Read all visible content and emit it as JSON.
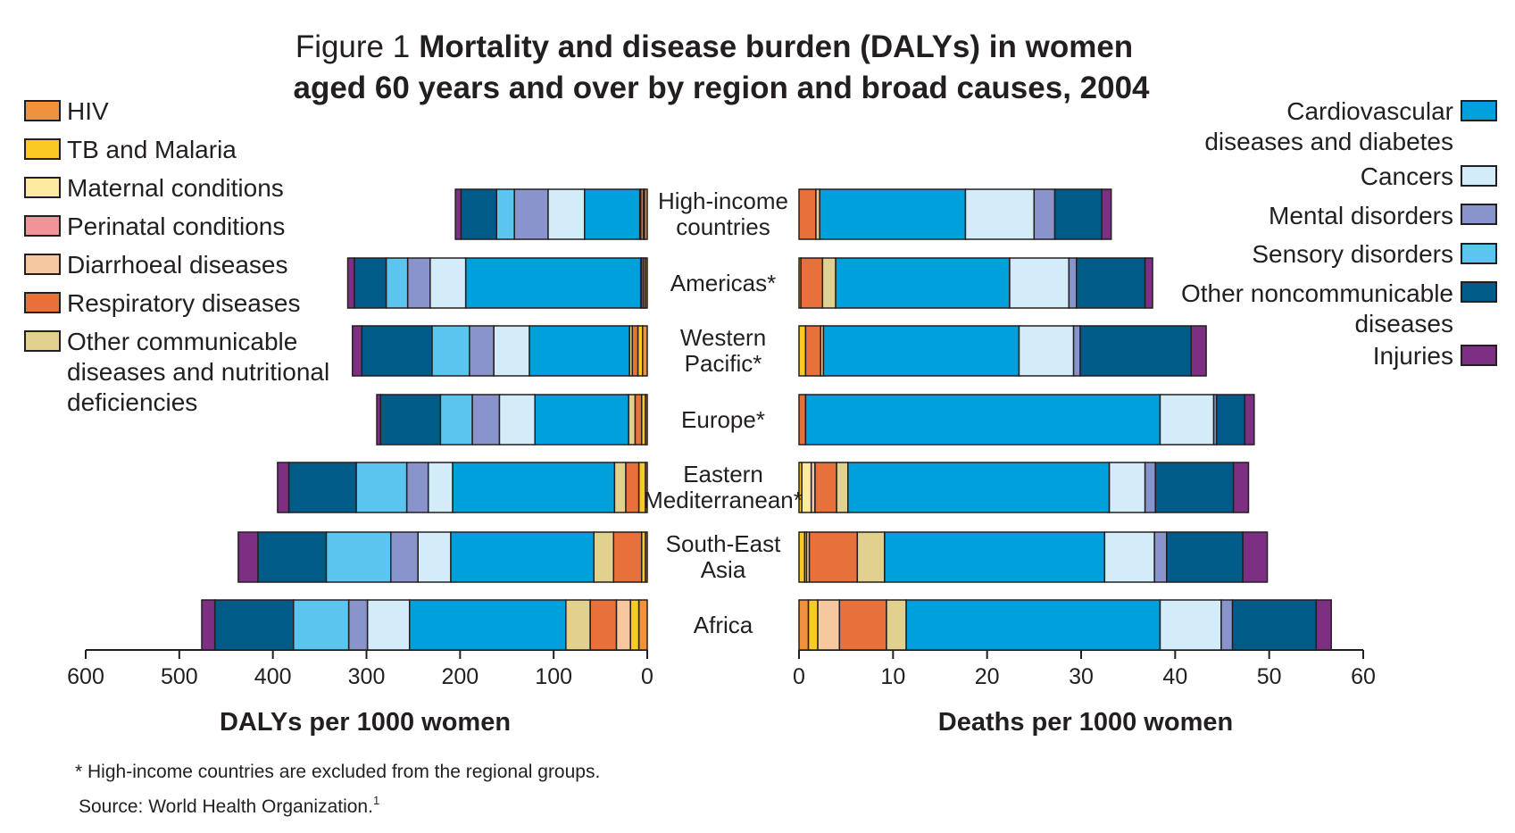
{
  "chart_data": [
    {
      "type": "bar",
      "orientation": "horizontal",
      "stacked": true,
      "direction": "leftward",
      "xlabel": "DALYs per 1000 women",
      "xlim": [
        0,
        600
      ],
      "xticks": [
        600,
        500,
        400,
        300,
        200,
        100,
        0
      ],
      "categories": [
        "High-income countries",
        "Americas*",
        "Western Pacific*",
        "Europe*",
        "Eastern Mediterranean*",
        "South-East Asia",
        "Africa"
      ],
      "series": [
        {
          "name": "HIV",
          "values": [
            3,
            2,
            5,
            2,
            2,
            2,
            9
          ]
        },
        {
          "name": "TB and Malaria",
          "values": [
            1,
            2,
            5,
            4,
            7,
            4,
            9
          ]
        },
        {
          "name": "Maternal conditions",
          "values": [
            0,
            0,
            0,
            0,
            0,
            0,
            0
          ]
        },
        {
          "name": "Perinatal conditions",
          "values": [
            0,
            0,
            0,
            0,
            0,
            0,
            0
          ]
        },
        {
          "name": "Diarrhoeal diseases",
          "values": [
            0,
            0,
            0,
            0,
            0,
            0,
            15
          ]
        },
        {
          "name": "Respiratory diseases",
          "values": [
            3,
            2,
            6,
            7,
            14,
            30,
            28
          ]
        },
        {
          "name": "Other communicable diseases and nutritional deficiencies",
          "values": [
            1,
            1,
            3,
            7,
            12,
            21,
            26
          ]
        },
        {
          "name": "Cardiovascular diseases and diabetes",
          "values": [
            59,
            187,
            107,
            100,
            173,
            153,
            167
          ]
        },
        {
          "name": "Cancers",
          "values": [
            39,
            38,
            38,
            38,
            26,
            35,
            45
          ]
        },
        {
          "name": "Mental disorders",
          "values": [
            36,
            24,
            26,
            29,
            23,
            29,
            20
          ]
        },
        {
          "name": "Sensory disorders",
          "values": [
            19,
            23,
            40,
            34,
            54,
            69,
            59
          ]
        },
        {
          "name": "Other noncommunicable diseases",
          "values": [
            38,
            34,
            75,
            64,
            72,
            73,
            84
          ]
        },
        {
          "name": "Injuries",
          "values": [
            6,
            7,
            10,
            4,
            12,
            21,
            14
          ]
        }
      ]
    },
    {
      "type": "bar",
      "orientation": "horizontal",
      "stacked": true,
      "direction": "rightward",
      "xlabel": "Deaths per 1000 women",
      "xlim": [
        0,
        60
      ],
      "xticks": [
        0,
        10,
        20,
        30,
        40,
        50,
        60
      ],
      "categories": [
        "High-income countries",
        "Americas*",
        "Western Pacific*",
        "Europe*",
        "Eastern Mediterranean*",
        "South-East Asia",
        "Africa"
      ],
      "series": [
        {
          "name": "HIV",
          "values": [
            0,
            0,
            0,
            0,
            0,
            0,
            1
          ]
        },
        {
          "name": "TB and Malaria",
          "values": [
            0,
            0.2,
            0.7,
            0,
            0.3,
            0.6,
            1
          ]
        },
        {
          "name": "Maternal conditions",
          "values": [
            0,
            0,
            0,
            0,
            1,
            0.2,
            0
          ]
        },
        {
          "name": "Perinatal conditions",
          "values": [
            0,
            0,
            0,
            0,
            0,
            0,
            0
          ]
        },
        {
          "name": "Diarrhoeal diseases",
          "values": [
            0,
            0,
            0,
            0,
            0.4,
            0.3,
            2.3
          ]
        },
        {
          "name": "Respiratory diseases",
          "values": [
            1.8,
            2.3,
            1.6,
            0.7,
            2.3,
            5.1,
            5
          ]
        },
        {
          "name": "Other communicable diseases and nutritional deficiencies",
          "values": [
            0.4,
            1.4,
            0.3,
            0,
            1.2,
            2.9,
            2.1
          ]
        },
        {
          "name": "Cardiovascular diseases and diabetes",
          "values": [
            15.5,
            18.5,
            20.8,
            37.7,
            27.8,
            23.4,
            27
          ]
        },
        {
          "name": "Cancers",
          "values": [
            7.3,
            6.3,
            5.8,
            5.7,
            3.8,
            5.3,
            6.5
          ]
        },
        {
          "name": "Mental disorders",
          "values": [
            2.2,
            0.8,
            0.7,
            0.3,
            1.1,
            1.3,
            1.2
          ]
        },
        {
          "name": "Sensory disorders",
          "values": [
            0,
            0,
            0,
            0,
            0,
            0,
            0
          ]
        },
        {
          "name": "Other noncommunicable diseases",
          "values": [
            5,
            7.3,
            11.8,
            3,
            8.3,
            8.1,
            8.9
          ]
        },
        {
          "name": "Injuries",
          "values": [
            1,
            0.8,
            1.6,
            1,
            1.6,
            2.6,
            1.6
          ]
        }
      ]
    }
  ],
  "title": {
    "prefix": "Figure 1",
    "line1": "Mortality and disease burden (DALYs) in women",
    "line2": "aged 60 years and over by region and broad causes, 2004"
  },
  "category_labels": [
    [
      "High-income",
      "countries"
    ],
    [
      "Americas*"
    ],
    [
      "Western",
      "Pacific*"
    ],
    [
      "Europe*"
    ],
    [
      "Eastern",
      "Mediterranean*"
    ],
    [
      "South-East",
      "Asia"
    ],
    [
      "Africa"
    ]
  ],
  "legend_left": [
    {
      "lines": [
        "HIV"
      ],
      "color": "#f0923b"
    },
    {
      "lines": [
        "TB and Malaria"
      ],
      "color": "#f9c924"
    },
    {
      "lines": [
        "Maternal conditions"
      ],
      "color": "#fde9a0"
    },
    {
      "lines": [
        "Perinatal conditions"
      ],
      "color": "#f1949a"
    },
    {
      "lines": [
        "Diarrhoeal diseases"
      ],
      "color": "#f6c8a0"
    },
    {
      "lines": [
        "Respiratory diseases"
      ],
      "color": "#e8703a"
    },
    {
      "lines": [
        "Other communicable",
        "diseases and nutritional",
        "deficiencies"
      ],
      "color": "#e1d08e"
    }
  ],
  "legend_right": [
    {
      "lines": [
        "Cardiovascular",
        "diseases and diabetes"
      ],
      "color": "#00a0dc"
    },
    {
      "lines": [
        "Cancers"
      ],
      "color": "#d2ecf9"
    },
    {
      "lines": [
        "Mental disorders"
      ],
      "color": "#8a94cc"
    },
    {
      "lines": [
        "Sensory disorders"
      ],
      "color": "#5bc5ef"
    },
    {
      "lines": [
        "Other noncommunicable",
        "diseases"
      ],
      "color": "#005b88"
    },
    {
      "lines": [
        "Injuries"
      ],
      "color": "#7d2f83"
    }
  ],
  "footnote": "* High-income countries are excluded from the regional groups.",
  "source": "Source: World Health Organization.",
  "source_superscript": "1"
}
